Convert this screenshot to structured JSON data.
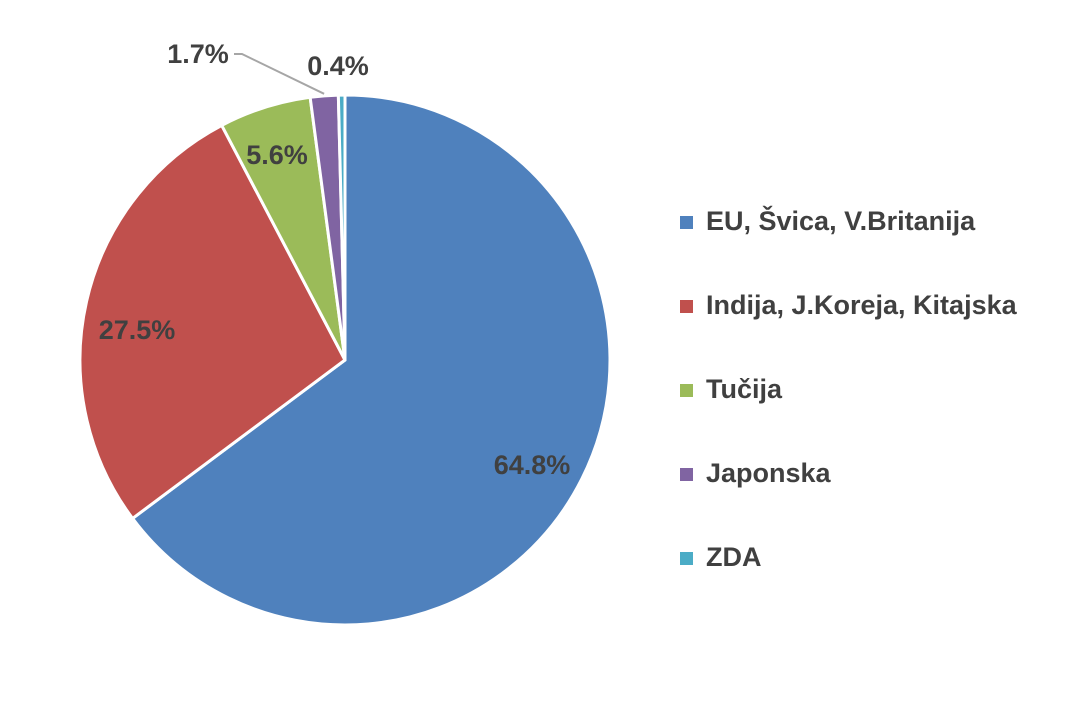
{
  "chart_data": {
    "type": "pie",
    "title": "",
    "legend_position": "right",
    "slices": [
      {
        "name": "EU, Švica, V.Britanija",
        "value": 64.8,
        "label": "64.8%",
        "color": "#4F81BD"
      },
      {
        "name": "Indija, J.Koreja, Kitajska",
        "value": 27.5,
        "label": "27.5%",
        "color": "#C0504D"
      },
      {
        "name": "Tučija",
        "value": 5.6,
        "label": "5.6%",
        "color": "#9BBB59"
      },
      {
        "name": "Japonska",
        "value": 1.7,
        "label": "1.7%",
        "color": "#8064A2"
      },
      {
        "name": "ZDA",
        "value": 0.4,
        "label": "0.4%",
        "color": "#4BACC6"
      }
    ]
  }
}
